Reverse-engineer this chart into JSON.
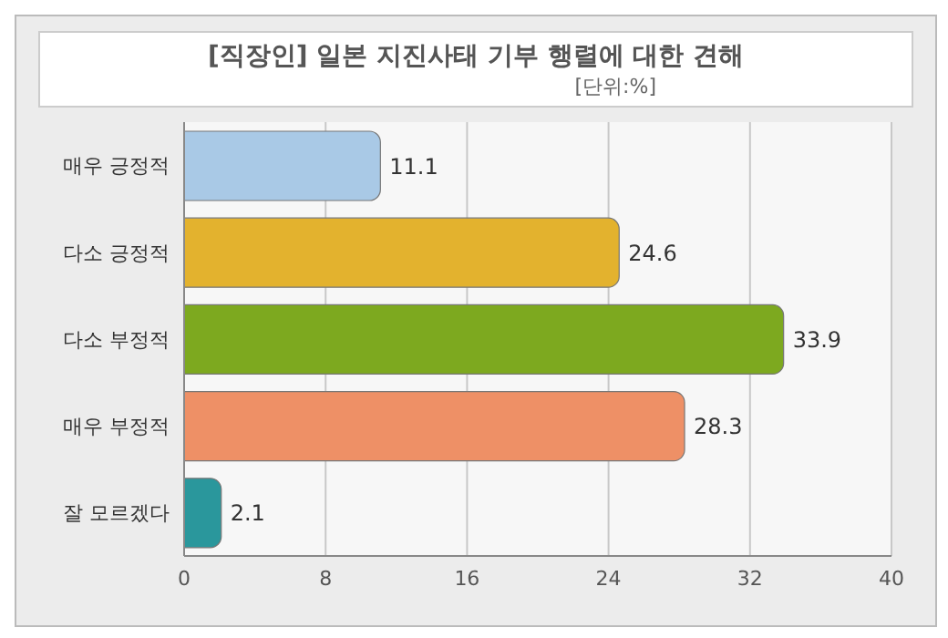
{
  "chart_data": {
    "type": "bar",
    "orientation": "horizontal",
    "title": "[직장인] 일본 지진사태 기부 행렬에 대한 견해",
    "subtitle": "[단위:%]",
    "categories": [
      "매우 긍정적",
      "다소 긍정적",
      "다소 부정적",
      "매우 부정적",
      "잘 모르겠다"
    ],
    "values": [
      11.1,
      24.6,
      33.9,
      28.3,
      2.1
    ],
    "colors": [
      "#a9c9e6",
      "#e3b22e",
      "#7da91f",
      "#ee9066",
      "#2a979c"
    ],
    "xlim": [
      0,
      40
    ],
    "xticks": [
      0,
      8,
      16,
      24,
      32,
      40
    ],
    "grid": "x",
    "data_labels": true
  }
}
